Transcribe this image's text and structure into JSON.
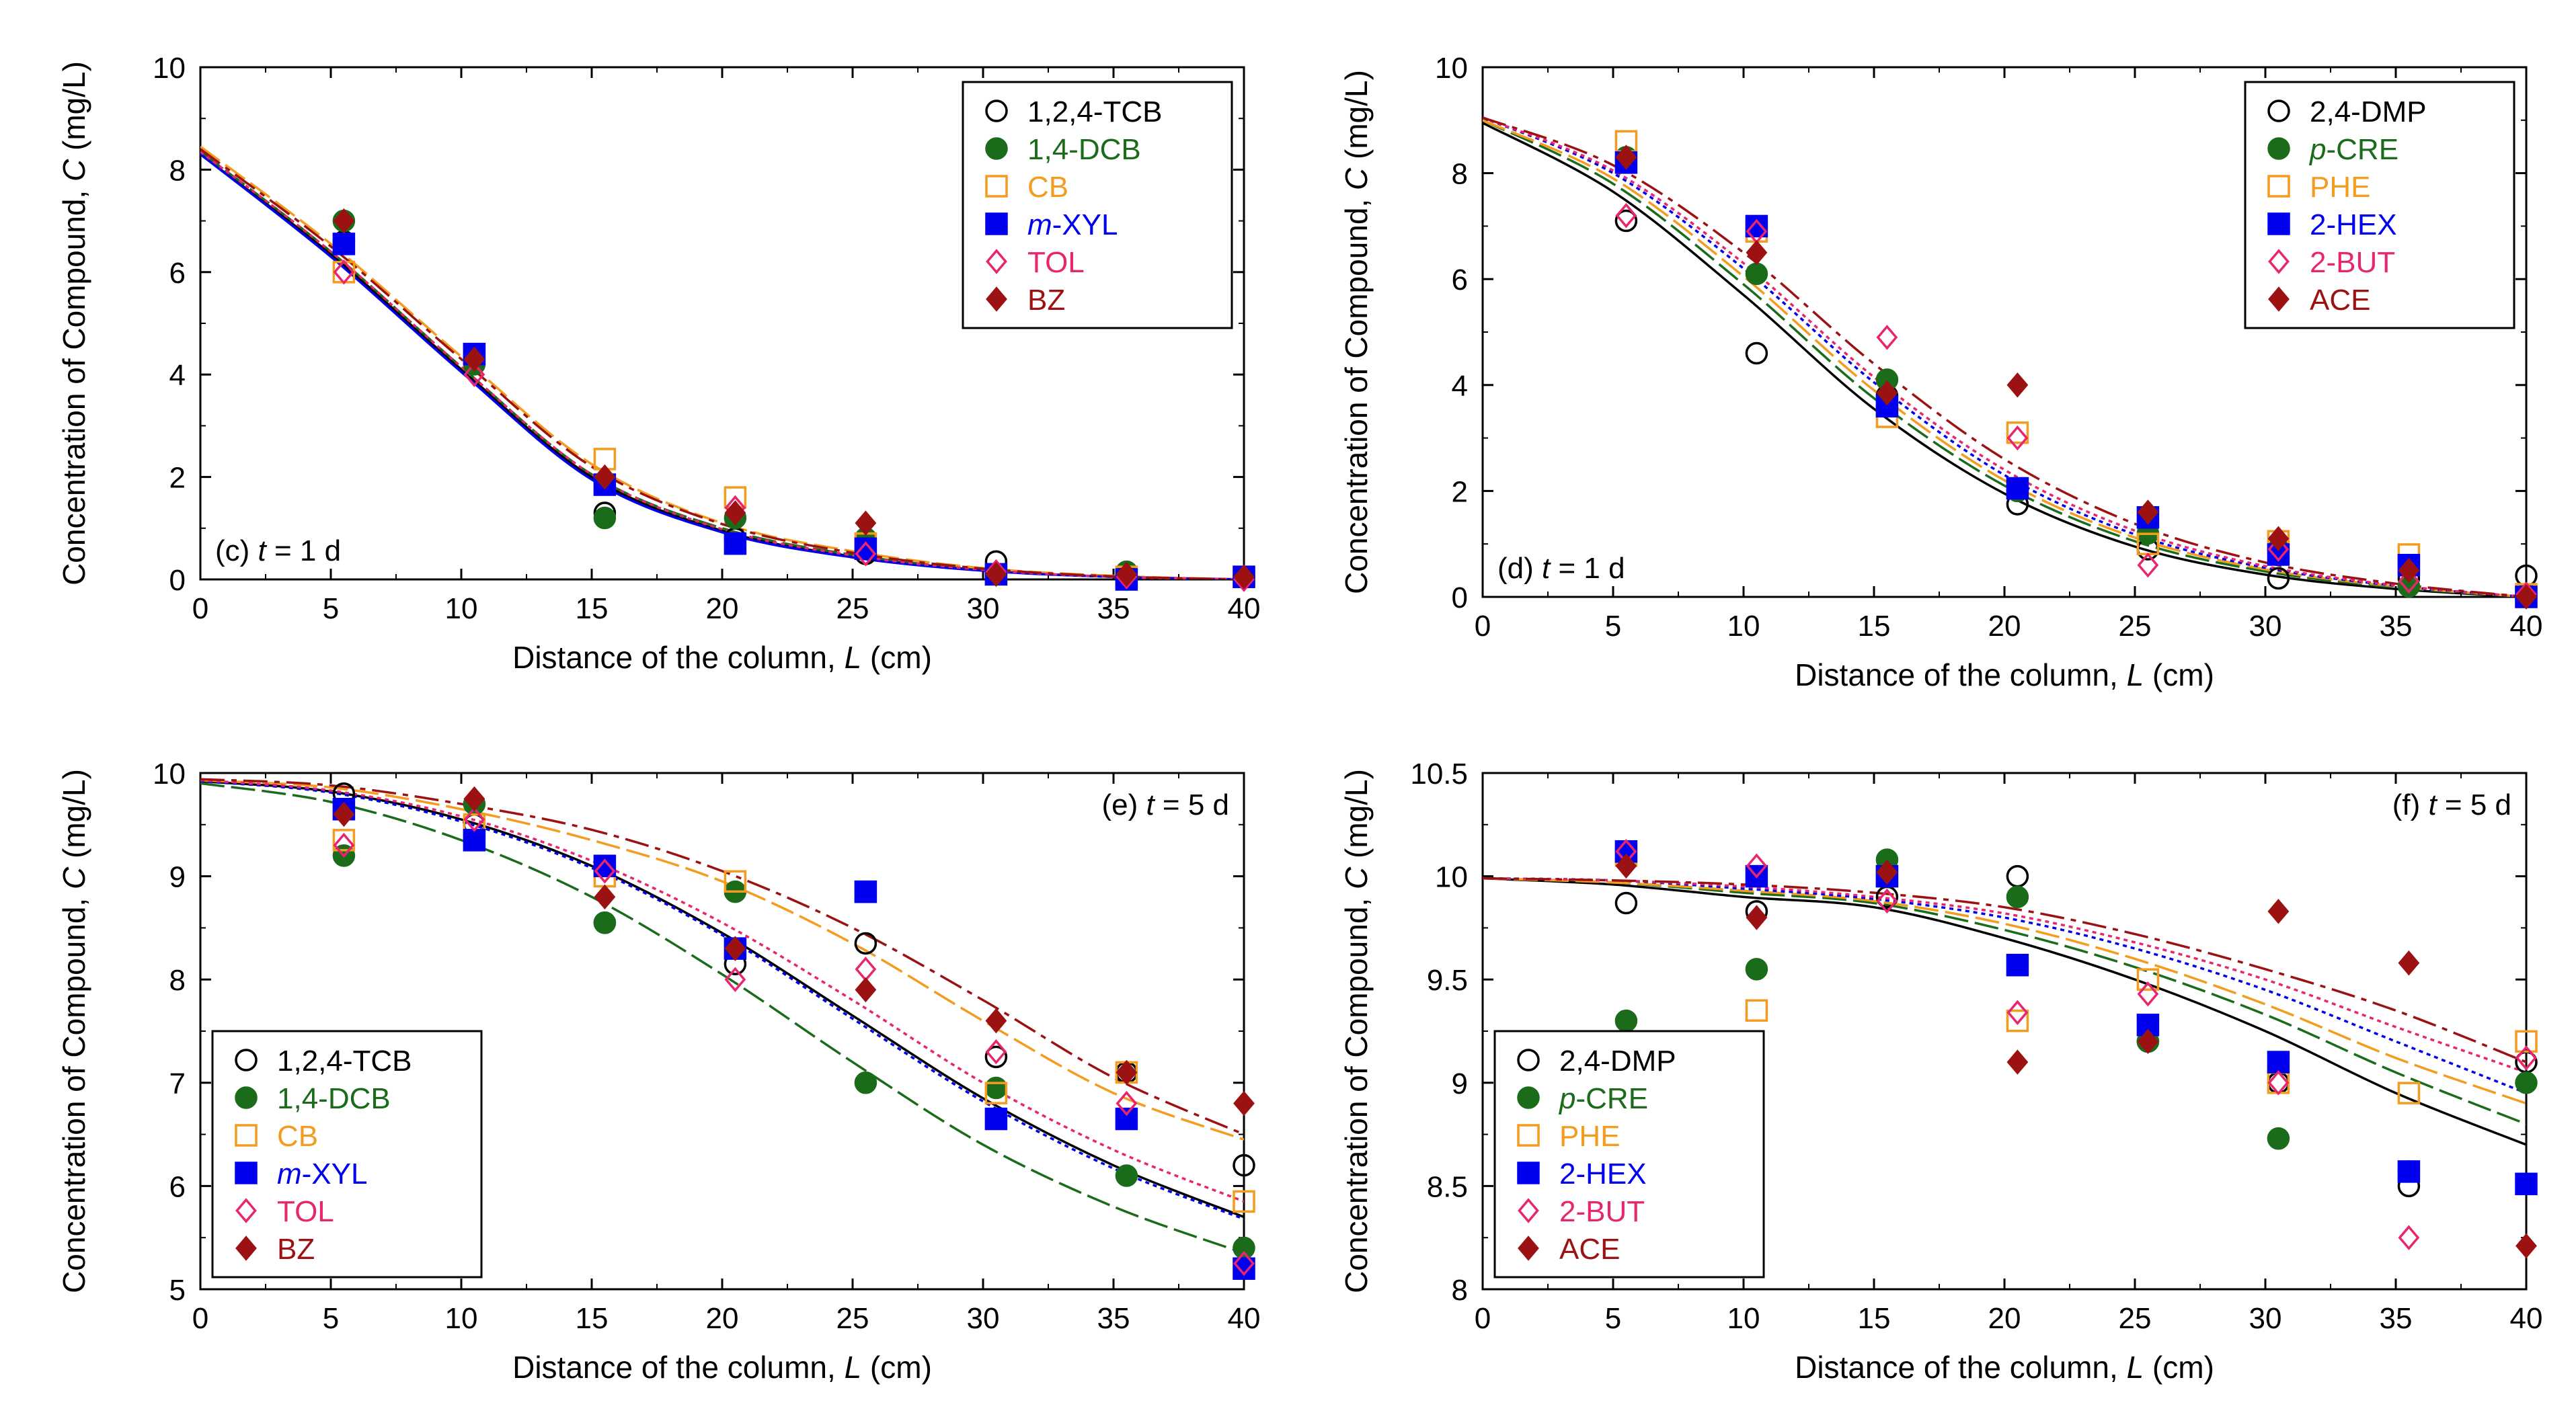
{
  "colors": {
    "TCB": "#000000",
    "DCB": "#1a6b1a",
    "CB": "#f39c1f",
    "XYL": "#0000ee",
    "TOL": "#e8256f",
    "BZ": "#9c1111",
    "DMP": "#000000",
    "CRE": "#1a6b1a",
    "PHE": "#f39c1f",
    "HEX": "#0000ee",
    "BUT": "#e8256f",
    "ACE": "#9c1111"
  },
  "chart_data": [
    {
      "type": "scatter",
      "panel": "c",
      "ylabel_pre": "Concentration of Compound, ",
      "ylabel_var": "C",
      "ylabel_post": " (mg/L)",
      "xlabel_pre": "Distance of the column, ",
      "xlabel_var": "L",
      "xlabel_post": " (cm)",
      "annotation": {
        "pre": "(c) ",
        "var": "t",
        "post": " = 1 d"
      },
      "xlim": [
        0,
        40
      ],
      "ylim": [
        0,
        10
      ],
      "xticks": [
        0,
        5,
        10,
        15,
        20,
        25,
        30,
        35,
        40
      ],
      "yticks": [
        0,
        2,
        4,
        6,
        8,
        10
      ],
      "ytick_labels": [
        "0",
        "2",
        "4",
        "6",
        "8",
        "10"
      ],
      "legend_position": "top-right",
      "x": [
        5.5,
        10.5,
        15.5,
        20.5,
        25.5,
        30.5,
        35.5,
        40
      ],
      "series": [
        {
          "prefix": "",
          "italic": "",
          "suffix": "1,2,4-TCB",
          "marker": "open-circle",
          "color_key": "TCB",
          "values": [
            6.6,
            4.3,
            1.3,
            0.8,
            0.5,
            0.35,
            0.05,
            0.05
          ],
          "fit": {
            "dash": "none",
            "values": [
              8.3,
              6.35,
              4.1,
              2.0,
              0.95,
              0.45,
              0.18,
              0.05,
              0.0
            ]
          }
        },
        {
          "prefix": "",
          "italic": "",
          "suffix": "1,4-DCB",
          "marker": "filled-circle",
          "color_key": "DCB",
          "values": [
            7.0,
            4.2,
            1.2,
            1.2,
            0.8,
            0.1,
            0.15,
            0.05
          ],
          "fit": {
            "dash": "36,10",
            "values": [
              8.35,
              6.4,
              4.15,
              2.05,
              1.0,
              0.48,
              0.19,
              0.05,
              0.0
            ]
          }
        },
        {
          "prefix": "",
          "italic": "",
          "suffix": "CB",
          "marker": "open-square",
          "color_key": "CB",
          "values": [
            6.0,
            4.4,
            2.35,
            1.6,
            0.7,
            0.1,
            0.05,
            0.05
          ],
          "fit": {
            "dash": "36,10",
            "values": [
              8.45,
              6.55,
              4.35,
              2.25,
              1.1,
              0.55,
              0.22,
              0.07,
              0.0
            ]
          }
        },
        {
          "prefix": "",
          "italic": "m",
          "suffix": "-XYL",
          "marker": "filled-square",
          "color_key": "XYL",
          "values": [
            6.55,
            4.4,
            1.85,
            0.7,
            0.6,
            0.1,
            0.0,
            0.05
          ],
          "fit": {
            "dash": "none",
            "values": [
              8.3,
              6.3,
              4.05,
              1.95,
              0.92,
              0.43,
              0.17,
              0.05,
              0.0
            ]
          }
        },
        {
          "prefix": "",
          "italic": "",
          "suffix": "TOL",
          "marker": "open-diamond",
          "color_key": "TOL",
          "values": [
            6.0,
            4.0,
            2.0,
            1.4,
            0.5,
            0.15,
            0.05,
            0.0
          ],
          "fit": {
            "dash": "6,6",
            "values": [
              8.35,
              6.4,
              4.15,
              2.05,
              0.98,
              0.47,
              0.19,
              0.05,
              0.0
            ]
          }
        },
        {
          "prefix": "",
          "italic": "",
          "suffix": "BZ",
          "marker": "filled-diamond",
          "color_key": "BZ",
          "values": [
            7.0,
            4.3,
            2.0,
            1.3,
            1.1,
            0.1,
            0.1,
            0.05
          ],
          "fit": {
            "dash": "36,10,8,10",
            "values": [
              8.4,
              6.5,
              4.3,
              2.2,
              1.08,
              0.52,
              0.21,
              0.06,
              0.0
            ]
          }
        }
      ]
    },
    {
      "type": "scatter",
      "panel": "d",
      "ylabel_pre": "Concentration of Compound, ",
      "ylabel_var": "C",
      "ylabel_post": " (mg/L)",
      "xlabel_pre": "Distance of the column, ",
      "xlabel_var": "L",
      "xlabel_post": " (cm)",
      "annotation": {
        "pre": "(d) ",
        "var": "t",
        "post": " = 1 d"
      },
      "xlim": [
        0,
        40
      ],
      "ylim": [
        0,
        10
      ],
      "xticks": [
        0,
        5,
        10,
        15,
        20,
        25,
        30,
        35,
        40
      ],
      "yticks": [
        0,
        2,
        4,
        6,
        8,
        10
      ],
      "ytick_labels": [
        "0",
        "2",
        "4",
        "6",
        "8",
        "10"
      ],
      "legend_position": "top-right",
      "x": [
        5.5,
        10.5,
        15.5,
        20.5,
        25.5,
        30.5,
        35.5,
        40
      ],
      "series": [
        {
          "prefix": "",
          "italic": "",
          "suffix": "2,4-DMP",
          "marker": "open-circle",
          "color_key": "DMP",
          "values": [
            7.1,
            4.6,
            3.8,
            1.75,
            0.9,
            0.35,
            0.35,
            0.4
          ],
          "fit": {
            "dash": "none",
            "values": [
              8.95,
              7.65,
              5.7,
              3.55,
              1.95,
              0.95,
              0.42,
              0.15,
              0.0
            ]
          }
        },
        {
          "prefix": "",
          "italic": "p",
          "suffix": "-CRE",
          "marker": "filled-circle",
          "color_key": "CRE",
          "values": [
            8.3,
            6.1,
            4.1,
            2.0,
            1.2,
            0.9,
            0.2,
            0.05
          ],
          "fit": {
            "dash": "36,10",
            "values": [
              9.0,
              7.8,
              5.9,
              3.75,
              2.1,
              1.05,
              0.48,
              0.18,
              0.0
            ]
          }
        },
        {
          "prefix": "",
          "italic": "",
          "suffix": "PHE",
          "marker": "open-square",
          "color_key": "PHE",
          "values": [
            8.6,
            6.9,
            3.4,
            3.1,
            1.0,
            1.05,
            0.8,
            0.05
          ],
          "fit": {
            "dash": "36,10",
            "values": [
              9.0,
              7.9,
              6.05,
              3.9,
              2.2,
              1.12,
              0.52,
              0.2,
              0.0
            ]
          }
        },
        {
          "prefix": "",
          "italic": "",
          "suffix": "2-HEX",
          "marker": "filled-square",
          "color_key": "HEX",
          "values": [
            8.2,
            7.0,
            3.6,
            2.05,
            1.5,
            0.8,
            0.6,
            0.0
          ],
          "fit": {
            "dash": "6,6",
            "values": [
              9.05,
              8.0,
              6.2,
              4.05,
              2.3,
              1.18,
              0.55,
              0.21,
              0.0
            ]
          }
        },
        {
          "prefix": "",
          "italic": "",
          "suffix": "2-BUT",
          "marker": "open-diamond",
          "color_key": "BUT",
          "values": [
            7.2,
            6.9,
            4.9,
            3.0,
            0.6,
            0.9,
            0.3,
            0.05
          ],
          "fit": {
            "dash": "6,6",
            "values": [
              9.05,
              8.05,
              6.3,
              4.15,
              2.4,
              1.25,
              0.58,
              0.22,
              0.0
            ]
          }
        },
        {
          "prefix": "",
          "italic": "",
          "suffix": "ACE",
          "marker": "filled-diamond",
          "color_key": "ACE",
          "values": [
            8.3,
            6.5,
            3.85,
            4.0,
            1.6,
            1.1,
            0.5,
            0.0
          ],
          "fit": {
            "dash": "36,10,8,10",
            "values": [
              9.05,
              8.15,
              6.5,
              4.4,
              2.6,
              1.38,
              0.65,
              0.25,
              0.0
            ]
          }
        }
      ]
    },
    {
      "type": "scatter",
      "panel": "e",
      "ylabel_pre": "Concentration of Compound, ",
      "ylabel_var": "C",
      "ylabel_post": " (mg/L)",
      "xlabel_pre": "Distance of the column, ",
      "xlabel_var": "L",
      "xlabel_post": " (cm)",
      "annotation": {
        "pre": "(e) ",
        "var": "t",
        "post": " = 5 d"
      },
      "xlim": [
        0,
        40
      ],
      "ylim": [
        5,
        10
      ],
      "xticks": [
        0,
        5,
        10,
        15,
        20,
        25,
        30,
        35,
        40
      ],
      "yticks": [
        5,
        6,
        7,
        8,
        9,
        10
      ],
      "ytick_labels": [
        "5",
        "6",
        "7",
        "8",
        "9",
        "10"
      ],
      "legend_position": "bottom-left",
      "x": [
        5.5,
        10.5,
        15.5,
        20.5,
        25.5,
        30.5,
        35.5,
        40
      ],
      "series": [
        {
          "prefix": "",
          "italic": "",
          "suffix": "1,2,4-TCB",
          "marker": "open-circle",
          "color_key": "TCB",
          "values": [
            9.8,
            9.5,
            8.55,
            8.15,
            8.35,
            7.25,
            7.1,
            6.2
          ],
          "fit": {
            "dash": "none",
            "values": [
              9.92,
              9.82,
              9.55,
              9.1,
              8.45,
              7.65,
              6.85,
              6.2,
              5.7
            ]
          }
        },
        {
          "prefix": "",
          "italic": "",
          "suffix": "1,4-DCB",
          "marker": "filled-circle",
          "color_key": "DCB",
          "values": [
            9.2,
            9.7,
            8.55,
            8.85,
            7.0,
            6.95,
            6.1,
            5.4
          ],
          "fit": {
            "dash": "36,10",
            "values": [
              9.9,
              9.72,
              9.35,
              8.8,
              8.05,
              7.2,
              6.4,
              5.8,
              5.35
            ]
          }
        },
        {
          "prefix": "",
          "italic": "",
          "suffix": "CB",
          "marker": "open-square",
          "color_key": "CB",
          "values": [
            9.35,
            9.5,
            9.0,
            8.95,
            8.85,
            6.9,
            7.1,
            5.85
          ],
          "fit": {
            "dash": "36,10",
            "values": [
              9.93,
              9.86,
              9.65,
              9.35,
              8.95,
              8.35,
              7.6,
              6.9,
              6.45
            ]
          }
        },
        {
          "prefix": "",
          "italic": "m",
          "suffix": "-XYL",
          "marker": "filled-square",
          "color_key": "XYL",
          "values": [
            9.65,
            9.35,
            9.1,
            8.3,
            8.85,
            6.65,
            6.65,
            5.2
          ],
          "fit": {
            "dash": "6,6",
            "values": [
              9.92,
              9.81,
              9.53,
              9.08,
              8.43,
              7.62,
              6.82,
              6.17,
              5.68
            ]
          }
        },
        {
          "prefix": "",
          "italic": "",
          "suffix": "TOL",
          "marker": "open-diamond",
          "color_key": "TOL",
          "values": [
            9.3,
            9.55,
            9.05,
            8.0,
            8.1,
            7.3,
            6.8,
            5.25
          ],
          "fit": {
            "dash": "6,6",
            "values": [
              9.93,
              9.83,
              9.58,
              9.15,
              8.55,
              7.8,
              7.0,
              6.35,
              5.85
            ]
          }
        },
        {
          "prefix": "",
          "italic": "",
          "suffix": "BZ",
          "marker": "filled-diamond",
          "color_key": "BZ",
          "values": [
            9.6,
            9.75,
            8.8,
            8.3,
            7.9,
            7.6,
            7.1,
            6.8
          ],
          "fit": {
            "dash": "36,10,8,10",
            "values": [
              9.94,
              9.88,
              9.7,
              9.45,
              9.05,
              8.5,
              7.8,
              7.05,
              6.5
            ]
          }
        }
      ]
    },
    {
      "type": "scatter",
      "panel": "f",
      "ylabel_pre": "Concentration of Compound, ",
      "ylabel_var": "C",
      "ylabel_post": " (mg/L)",
      "xlabel_pre": "Distance of the column, ",
      "xlabel_var": "L",
      "xlabel_post": " (cm)",
      "annotation": {
        "pre": "(f) ",
        "var": "t",
        "post": " = 5 d"
      },
      "xlim": [
        0,
        40
      ],
      "ylim": [
        8,
        10.5
      ],
      "xticks": [
        0,
        5,
        10,
        15,
        20,
        25,
        30,
        35,
        40
      ],
      "yticks": [
        8,
        8.5,
        9,
        9.5,
        10,
        10.5
      ],
      "ytick_labels": [
        "8",
        "8.5",
        "9",
        "9.5",
        "10",
        "10.5"
      ],
      "legend_position": "bottom-left",
      "x": [
        5.5,
        10.5,
        15.5,
        20.5,
        25.5,
        30.5,
        35.5,
        40
      ],
      "series": [
        {
          "prefix": "",
          "italic": "",
          "suffix": "2,4-DMP",
          "marker": "open-circle",
          "color_key": "DMP",
          "values": [
            9.87,
            9.83,
            9.9,
            10.0,
            9.2,
            9.0,
            8.5,
            9.1
          ],
          "fit": {
            "dash": "none",
            "values": [
              9.99,
              9.96,
              9.9,
              9.85,
              9.7,
              9.5,
              9.25,
              8.95,
              8.7
            ]
          }
        },
        {
          "prefix": "",
          "italic": "p",
          "suffix": "-CRE",
          "marker": "filled-circle",
          "color_key": "CRE",
          "values": [
            9.3,
            9.55,
            10.08,
            9.9,
            9.2,
            8.73,
            8.57,
            9.0
          ],
          "fit": {
            "dash": "36,10",
            "values": [
              9.99,
              9.97,
              9.92,
              9.87,
              9.74,
              9.56,
              9.33,
              9.05,
              8.8
            ]
          }
        },
        {
          "prefix": "",
          "italic": "",
          "suffix": "PHE",
          "marker": "open-square",
          "color_key": "PHE",
          "values": [
            10.1,
            9.35,
            10.0,
            9.3,
            9.5,
            9.0,
            8.95,
            9.2
          ],
          "fit": {
            "dash": "36,10",
            "values": [
              9.99,
              9.97,
              9.93,
              9.88,
              9.77,
              9.6,
              9.38,
              9.12,
              8.9
            ]
          }
        },
        {
          "prefix": "",
          "italic": "",
          "suffix": "2-HEX",
          "marker": "filled-square",
          "color_key": "HEX",
          "values": [
            10.12,
            10.0,
            10.0,
            9.57,
            9.28,
            9.1,
            8.57,
            8.51
          ],
          "fit": {
            "dash": "6,6",
            "values": [
              9.99,
              9.98,
              9.94,
              9.89,
              9.8,
              9.65,
              9.45,
              9.2,
              8.95
            ]
          }
        },
        {
          "prefix": "",
          "italic": "",
          "suffix": "2-BUT",
          "marker": "open-diamond",
          "color_key": "BUT",
          "values": [
            10.12,
            10.05,
            9.88,
            9.34,
            9.43,
            9.0,
            8.25,
            9.12
          ],
          "fit": {
            "dash": "6,6",
            "values": [
              9.99,
              9.98,
              9.95,
              9.9,
              9.82,
              9.68,
              9.5,
              9.27,
              9.05
            ]
          }
        },
        {
          "prefix": "",
          "italic": "",
          "suffix": "ACE",
          "marker": "filled-diamond",
          "color_key": "ACE",
          "values": [
            10.05,
            9.8,
            10.02,
            9.1,
            9.2,
            9.83,
            9.58,
            8.21
          ],
          "fit": {
            "dash": "36,10,8,10",
            "values": [
              9.99,
              9.98,
              9.96,
              9.92,
              9.85,
              9.72,
              9.55,
              9.35,
              9.1
            ]
          }
        }
      ]
    }
  ]
}
